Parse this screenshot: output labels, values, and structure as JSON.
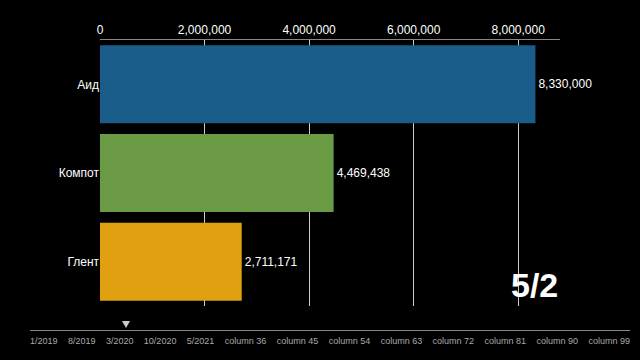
{
  "chart_data": {
    "type": "bar",
    "orientation": "horizontal",
    "categories": [
      "Аид",
      "Компот",
      "Глент"
    ],
    "values": [
      8330000,
      4469438,
      2711171
    ],
    "value_labels": [
      "8,330,000",
      "4,469,438",
      "2,711,171"
    ],
    "data_labels": true,
    "colors": [
      "#1a5c8a",
      "#6a9a44",
      "#e0a010"
    ],
    "xlim": [
      0,
      8800000
    ],
    "xticks": [
      0,
      {
        "value": 2000000,
        "label": "2,000,000"
      },
      {
        "value": 4000000,
        "label": "4,000,000"
      },
      {
        "value": 6000000,
        "label": "6,000,000"
      },
      {
        "value": 8000000,
        "label": "8,000,000"
      }
    ],
    "grid": true,
    "annotations": [
      "5/2"
    ],
    "timeline": [
      "1/2019",
      "8/2019",
      "3/2020",
      "10/2020",
      "5/2021",
      "column 36",
      "column 45",
      "column 54",
      "column 63",
      "column 72",
      "column 81",
      "column 90",
      "column 99"
    ]
  }
}
